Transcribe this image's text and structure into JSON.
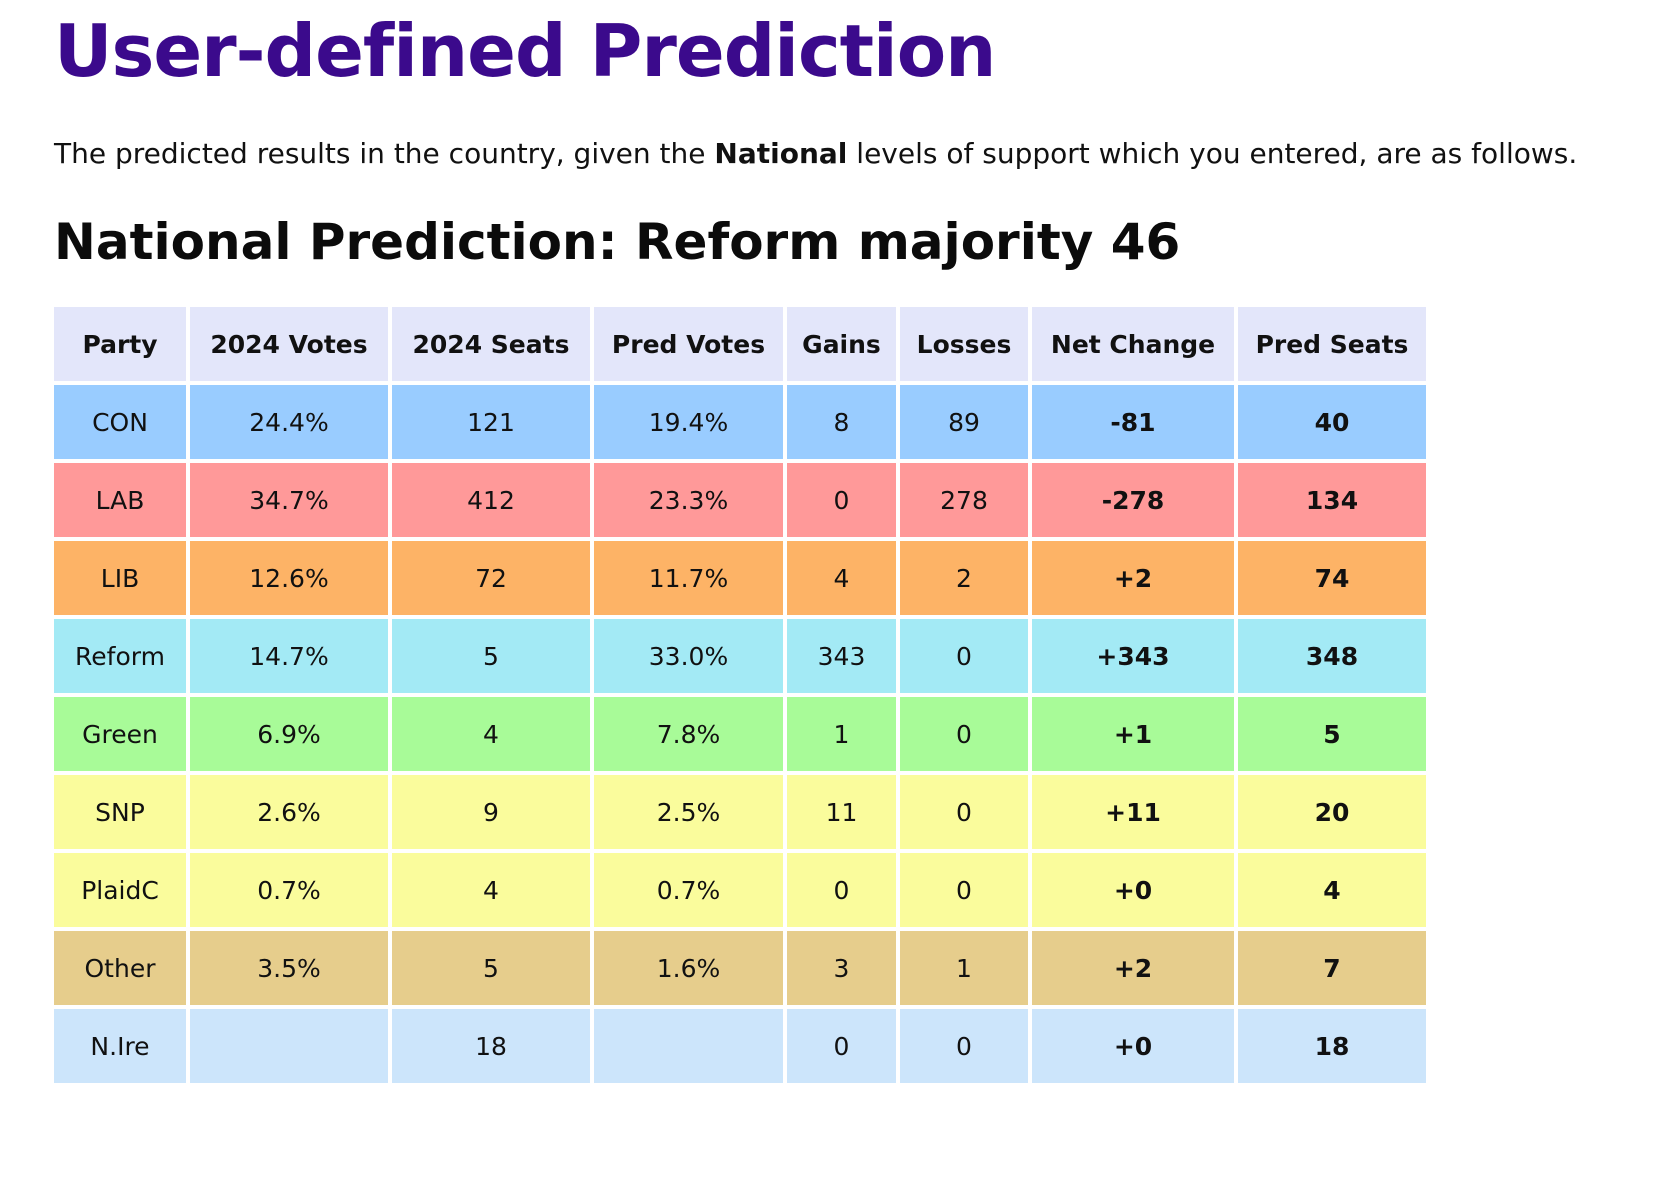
{
  "page": {
    "title": "User-defined Prediction",
    "intro_before": "The predicted results in the country, given the ",
    "intro_bold": "National",
    "intro_after": " levels of support which you entered, are as follows.",
    "subtitle": "National Prediction: Reform majority 46"
  },
  "table": {
    "headers": [
      "Party",
      "2024 Votes",
      "2024 Seats",
      "Pred Votes",
      "Gains",
      "Losses",
      "Net Change",
      "Pred Seats"
    ],
    "rows": [
      {
        "party": "CON",
        "votes_2024": "24.4%",
        "seats_2024": "121",
        "pred_votes": "19.4%",
        "gains": "8",
        "losses": "89",
        "net_change": "-81",
        "pred_seats": "40",
        "color": "#99ccff"
      },
      {
        "party": "LAB",
        "votes_2024": "34.7%",
        "seats_2024": "412",
        "pred_votes": "23.3%",
        "gains": "0",
        "losses": "278",
        "net_change": "-278",
        "pred_seats": "134",
        "color": "#ff9999"
      },
      {
        "party": "LIB",
        "votes_2024": "12.6%",
        "seats_2024": "72",
        "pred_votes": "11.7%",
        "gains": "4",
        "losses": "2",
        "net_change": "+2",
        "pred_seats": "74",
        "color": "#fdb366"
      },
      {
        "party": "Reform",
        "votes_2024": "14.7%",
        "seats_2024": "5",
        "pred_votes": "33.0%",
        "gains": "343",
        "losses": "0",
        "net_change": "+343",
        "pred_seats": "348",
        "color": "#a3eaf5"
      },
      {
        "party": "Green",
        "votes_2024": "6.9%",
        "seats_2024": "4",
        "pred_votes": "7.8%",
        "gains": "1",
        "losses": "0",
        "net_change": "+1",
        "pred_seats": "5",
        "color": "#a8fb98"
      },
      {
        "party": "SNP",
        "votes_2024": "2.6%",
        "seats_2024": "9",
        "pred_votes": "2.5%",
        "gains": "11",
        "losses": "0",
        "net_change": "+11",
        "pred_seats": "20",
        "color": "#fafc9c"
      },
      {
        "party": "PlaidC",
        "votes_2024": "0.7%",
        "seats_2024": "4",
        "pred_votes": "0.7%",
        "gains": "0",
        "losses": "0",
        "net_change": "+0",
        "pred_seats": "4",
        "color": "#fafc9c"
      },
      {
        "party": "Other",
        "votes_2024": "3.5%",
        "seats_2024": "5",
        "pred_votes": "1.6%",
        "gains": "3",
        "losses": "1",
        "net_change": "+2",
        "pred_seats": "7",
        "color": "#e6cd8c"
      },
      {
        "party": "N.Ire",
        "votes_2024": "",
        "seats_2024": "18",
        "pred_votes": "",
        "gains": "0",
        "losses": "0",
        "net_change": "+0",
        "pred_seats": "18",
        "color": "#cce5fb"
      }
    ]
  }
}
